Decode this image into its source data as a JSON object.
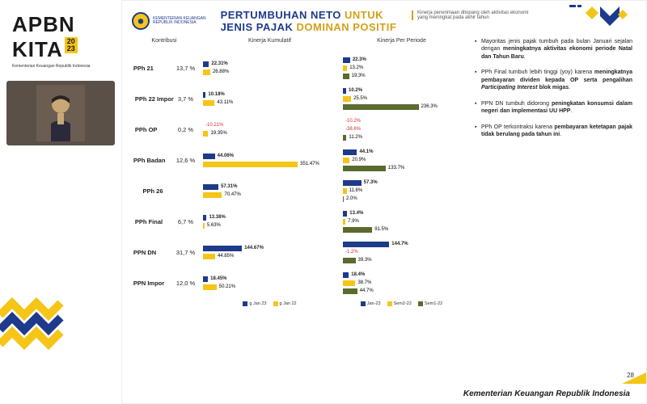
{
  "colors": {
    "navy": "#1e3a8a",
    "gold": "#f5c518",
    "dark_gold": "#d4a017",
    "olive": "#5a6b2f",
    "red": "#d32f2f",
    "text": "#222222",
    "grey": "#555555"
  },
  "left": {
    "apbn": "APBN",
    "kita": "KITA",
    "year_top": "20",
    "year_bottom": "23",
    "subtitle": "Kementerian Keuangan Republik Indonesia"
  },
  "header": {
    "mof_line1": "KEMENTERIAN KEUANGAN",
    "mof_line2": "REPUBLIK INDONESIA",
    "title_p1": "PERTUMBUHAN NETO",
    "title_p2": "UNTUK",
    "title_p3": "JENIS PAJAK",
    "title_p4": "DOMINAN POSITIF",
    "kinerja_note": "Kinerja penerimaan ditopang oleh aktivitas ekonomi yang meningkat pada akhir tahun"
  },
  "columns": {
    "kontribusi": "Kontribusi",
    "kumulatif": "Kinerja Kumulatif",
    "periode": "Kinerja Per Periode"
  },
  "chart": {
    "kum_max": 360,
    "per_max": 240,
    "legend_kum": [
      {
        "label": "g Jan 23",
        "color": "#1e3a8a"
      },
      {
        "label": "g Jan 22",
        "color": "#f5c518"
      }
    ],
    "legend_per": [
      {
        "label": "Jan-23",
        "color": "#1e3a8a"
      },
      {
        "label": "Sem2-22",
        "color": "#f5c518"
      },
      {
        "label": "Sem1-22",
        "color": "#5a6b2f"
      }
    ],
    "rows": [
      {
        "label": "PPh 21",
        "kontrib": "13,7 %",
        "kum": [
          {
            "v": 22.31,
            "t": "22.31%",
            "c": "#1e3a8a",
            "bold": true
          },
          {
            "v": 26.88,
            "t": "26.88%",
            "c": "#f5c518"
          }
        ],
        "per": [
          {
            "v": 22.3,
            "t": "22.3%",
            "c": "#1e3a8a",
            "bold": true
          },
          {
            "v": 13.2,
            "t": "13.2%",
            "c": "#f5c518"
          },
          {
            "v": 19.3,
            "t": "19.3%",
            "c": "#5a6b2f"
          }
        ]
      },
      {
        "label": "PPh 22 Impor",
        "kontrib": "3,7 %",
        "kum": [
          {
            "v": 10.18,
            "t": "10.18%",
            "c": "#1e3a8a",
            "bold": true
          },
          {
            "v": 43.11,
            "t": "43.11%",
            "c": "#f5c518"
          }
        ],
        "per": [
          {
            "v": 10.2,
            "t": "10.2%",
            "c": "#1e3a8a",
            "bold": true
          },
          {
            "v": 25.5,
            "t": "25.5%",
            "c": "#f5c518"
          },
          {
            "v": 236.3,
            "t": "236.3%",
            "c": "#5a6b2f"
          }
        ]
      },
      {
        "label": "PPh OP",
        "kontrib": "0,2 %",
        "kum": [
          {
            "v": -10.21,
            "t": "-10.21%",
            "c": "#1e3a8a",
            "neg": true
          },
          {
            "v": 19.35,
            "t": "19.35%",
            "c": "#f5c518"
          }
        ],
        "per": [
          {
            "v": -10.2,
            "t": "-10.2%",
            "c": "#1e3a8a",
            "neg": true
          },
          {
            "v": -38.6,
            "t": "-38.6%",
            "c": "#f5c518",
            "neg": true
          },
          {
            "v": 11.2,
            "t": "11.2%",
            "c": "#5a6b2f"
          }
        ]
      },
      {
        "label": "PPh Badan",
        "kontrib": "12,6 %",
        "kum": [
          {
            "v": 44.06,
            "t": "44.06%",
            "c": "#1e3a8a",
            "bold": true
          },
          {
            "v": 351.47,
            "t": "351.47%",
            "c": "#f5c518"
          }
        ],
        "per": [
          {
            "v": 44.1,
            "t": "44.1%",
            "c": "#1e3a8a",
            "bold": true
          },
          {
            "v": 20.9,
            "t": "20.9%",
            "c": "#f5c518"
          },
          {
            "v": 133.7,
            "t": "133.7%",
            "c": "#5a6b2f"
          }
        ]
      },
      {
        "label": "PPh 26",
        "kontrib": "",
        "kum": [
          {
            "v": 57.31,
            "t": "57.31%",
            "c": "#1e3a8a",
            "bold": true
          },
          {
            "v": 70.47,
            "t": "70.47%",
            "c": "#f5c518"
          }
        ],
        "per": [
          {
            "v": 57.3,
            "t": "57.3%",
            "c": "#1e3a8a",
            "bold": true
          },
          {
            "v": 11.8,
            "t": "11.8%",
            "c": "#f5c518"
          },
          {
            "v": 2.0,
            "t": "2.0%",
            "c": "#5a6b2f"
          }
        ]
      },
      {
        "label": "PPh Final",
        "kontrib": "6,7 %",
        "kum": [
          {
            "v": 13.38,
            "t": "13.38%",
            "c": "#1e3a8a",
            "bold": true
          },
          {
            "v": 5.63,
            "t": "5.63%",
            "c": "#f5c518"
          }
        ],
        "per": [
          {
            "v": 13.4,
            "t": "13.4%",
            "c": "#1e3a8a",
            "bold": true
          },
          {
            "v": 7.9,
            "t": "7.9%",
            "c": "#f5c518"
          },
          {
            "v": 91.5,
            "t": "91.5%",
            "c": "#5a6b2f"
          }
        ]
      },
      {
        "label": "PPN DN",
        "kontrib": "31,7 %",
        "kum": [
          {
            "v": 144.67,
            "t": "144.67%",
            "c": "#1e3a8a",
            "bold": true
          },
          {
            "v": 44.85,
            "t": "44.85%",
            "c": "#f5c518"
          }
        ],
        "per": [
          {
            "v": 144.7,
            "t": "144.7%",
            "c": "#1e3a8a",
            "bold": true
          },
          {
            "v": -1.2,
            "t": "-1.2%",
            "c": "#f5c518",
            "neg": true
          },
          {
            "v": 39.3,
            "t": "39.3%",
            "c": "#5a6b2f"
          }
        ]
      },
      {
        "label": "PPN Impor",
        "kontrib": "12,0 %",
        "kum": [
          {
            "v": 18.45,
            "t": "18.45%",
            "c": "#1e3a8a",
            "bold": true
          },
          {
            "v": 50.21,
            "t": "50.21%",
            "c": "#f5c518"
          }
        ],
        "per": [
          {
            "v": 18.4,
            "t": "18.4%",
            "c": "#1e3a8a",
            "bold": true
          },
          {
            "v": 38.7,
            "t": "38.7%",
            "c": "#f5c518"
          },
          {
            "v": 44.7,
            "t": "44.7%",
            "c": "#5a6b2f"
          }
        ]
      }
    ]
  },
  "bullets": [
    "Mayoritas jenis pajak tumbuh pada bulan Januari sejalan dengan <b>meningkatnya aktivitas ekonomi periode Natal dan Tahun Baru</b>.",
    "PPh Final tumbuh lebih tinggi (yoy) karena <b>meningkatnya pembayaran dividen kepada OP serta pengalihan <i>Participating Interest</i> blok migas</b>.",
    "PPN DN tumbuh didorong <b>peningkatan konsumsi dalam negeri dan implementasi UU HPP</b>.",
    "PPh OP terkontraksi karena <b>pembayaran ketetapan pajak tidak berulang pada tahun ini</b>."
  ],
  "page_num": "28",
  "footer": "Kementerian Keuangan Republik Indonesia"
}
